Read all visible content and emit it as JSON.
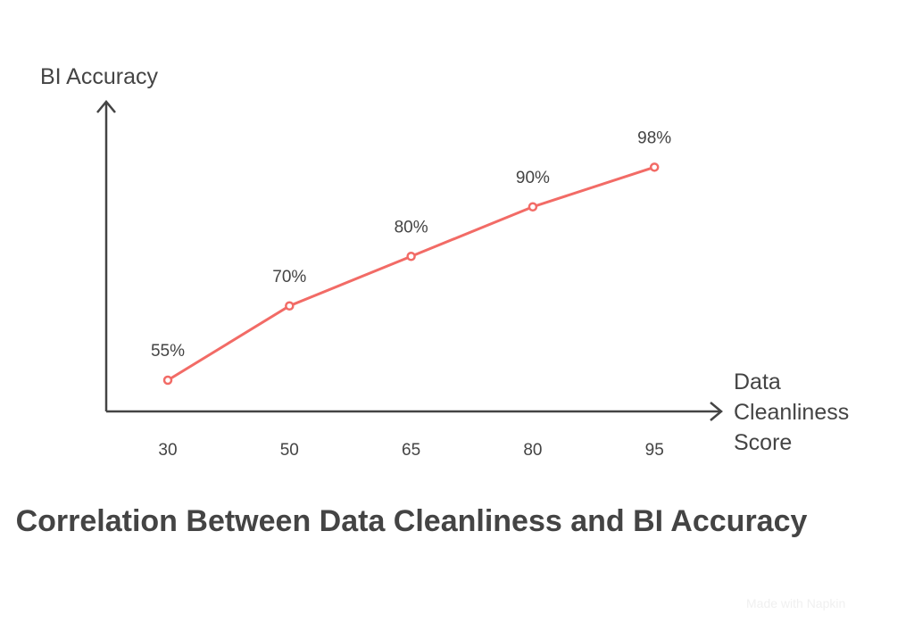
{
  "chart_data": {
    "type": "line",
    "title": "Correlation Between Data Cleanliness and BI Accuracy",
    "xlabel": [
      "Data",
      "Cleanliness",
      "Score"
    ],
    "ylabel": "BI Accuracy",
    "categories": [
      "30",
      "50",
      "65",
      "80",
      "95"
    ],
    "values": [
      55,
      70,
      80,
      90,
      98
    ],
    "data_labels": [
      "55%",
      "70%",
      "80%",
      "90%",
      "98%"
    ],
    "grid": false,
    "line_color": "#f26b66",
    "axis_color": "#444444"
  },
  "watermark": "Made with Napkin"
}
